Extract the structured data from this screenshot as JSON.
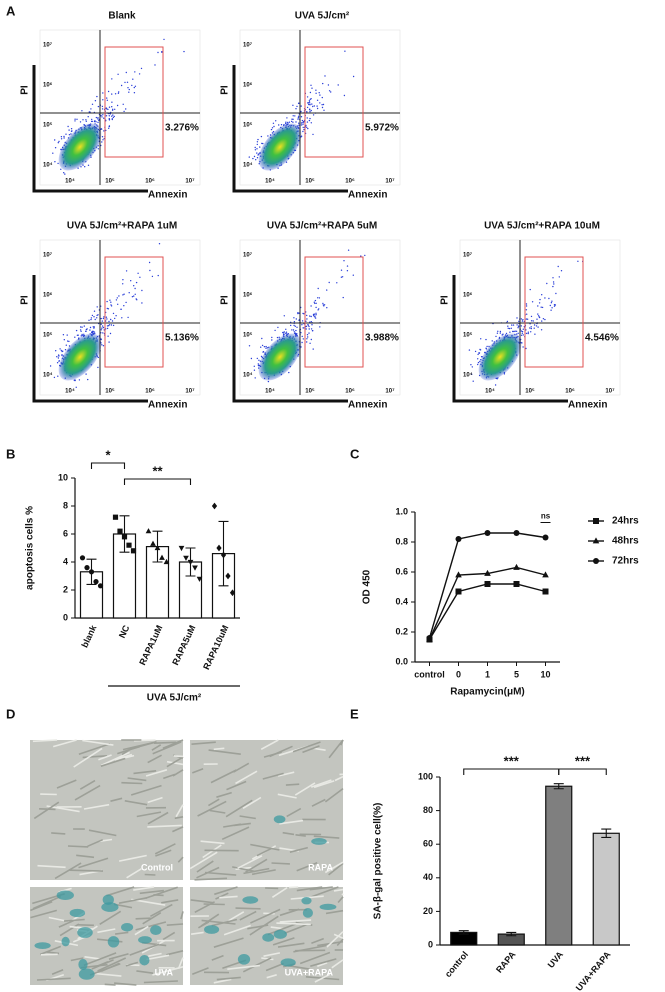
{
  "panel_a": {
    "label": "A",
    "ticks": [
      "10⁴",
      "10⁵",
      "10⁶",
      "10⁷"
    ],
    "plots": [
      {
        "title": "Blank",
        "percent": "3.276%",
        "y_label": "PI",
        "x_label": "Annexin"
      },
      {
        "title": "UVA 5J/cm²",
        "percent": "5.972%",
        "y_label": "PI",
        "x_label": "Annexin"
      },
      {
        "title": "UVA 5J/cm²+RAPA 1uM",
        "percent": "5.136%",
        "y_label": "PI",
        "x_label": "Annexin"
      },
      {
        "title": "UVA 5J/cm²+RAPA 5uM",
        "percent": "3.988%",
        "y_label": "PI",
        "x_label": "Annexin"
      },
      {
        "title": "UVA 5J/cm²+RAPA 10uM",
        "percent": "4.546%",
        "y_label": "PI",
        "x_label": "Annexin"
      }
    ]
  },
  "panel_d": {
    "label": "D",
    "images": [
      "Control",
      "RAPA",
      "UVA",
      "UVA+RAPA"
    ]
  },
  "chart_data": [
    {
      "type": "bar",
      "panel_label": "B",
      "y_label": "apoptosis cells %",
      "categories": [
        "blank",
        "NC",
        "RAPA1uM",
        "RAPA5uM",
        "RAPA10uM"
      ],
      "values": [
        3.3,
        6.0,
        5.1,
        4.0,
        4.6
      ],
      "errors": [
        0.9,
        1.3,
        1.1,
        1.0,
        2.3
      ],
      "points": [
        [
          4.3,
          3.6,
          3.3,
          2.6,
          2.3
        ],
        [
          7.2,
          6.2,
          5.8,
          5.2,
          4.8
        ],
        [
          6.2,
          5.3,
          5.0,
          4.3,
          4.0
        ],
        [
          5.0,
          4.3,
          4.0,
          3.6,
          2.8
        ],
        [
          8.0,
          5.0,
          4.5,
          3.0,
          1.8
        ]
      ],
      "markers": [
        "circle",
        "square",
        "triangle",
        "triangle-down",
        "diamond"
      ],
      "colors": [
        "#ffffff",
        "#ffffff",
        "#ffffff",
        "#ffffff",
        "#ffffff"
      ],
      "group": {
        "label": "UVA 5J/cm²",
        "from": 1,
        "to": 4
      },
      "annotations": [
        {
          "text": "*",
          "from": 0,
          "to": 1
        },
        {
          "text": "**",
          "from": 1,
          "to": 3
        }
      ],
      "ylim": [
        0,
        10
      ],
      "yticks": [
        0,
        2,
        4,
        6,
        8,
        10
      ]
    },
    {
      "type": "line",
      "panel_label": "C",
      "y_label": "OD 450",
      "x_label": "Rapamycin(μM)",
      "categories": [
        "control",
        "0",
        "1",
        "5",
        "10"
      ],
      "series": [
        {
          "name": "24hrs",
          "color": "#111111",
          "marker": "square",
          "values": [
            0.15,
            0.47,
            0.52,
            0.52,
            0.47
          ]
        },
        {
          "name": "48hrs",
          "color": "#111111",
          "marker": "triangle",
          "values": [
            0.15,
            0.58,
            0.59,
            0.63,
            0.58
          ]
        },
        {
          "name": "72hrs",
          "color": "#111111",
          "marker": "circle",
          "values": [
            0.16,
            0.82,
            0.86,
            0.86,
            0.83
          ]
        }
      ],
      "annotations": [
        {
          "text": "ns",
          "series": 2,
          "category": 4
        }
      ],
      "legend": "right",
      "ylim": [
        0,
        1
      ],
      "yticks": [
        {
          "value": 0,
          "label": "0.0"
        },
        0.2,
        0.4,
        0.6,
        0.8,
        {
          "value": 1,
          "label": "1.0"
        }
      ]
    },
    {
      "type": "bar",
      "panel_label": "E",
      "y_label": "SA-β-gal positive cell(%)",
      "categories": [
        "control",
        "RAPA",
        "UVA",
        "UVA+RAPA"
      ],
      "values": [
        7.5,
        6.5,
        94.5,
        66.5
      ],
      "errors": [
        1.0,
        1.0,
        1.5,
        2.5
      ],
      "colors": [
        "#000000",
        "#555555",
        "#7f7f7f",
        "#c8c8c8"
      ],
      "annotations": [
        {
          "text": "***",
          "from": 0,
          "to": 2
        },
        {
          "text": "***",
          "from": 2,
          "to": 3
        }
      ],
      "ylim": [
        0,
        100
      ],
      "yticks": [
        0,
        20,
        40,
        60,
        80,
        100
      ]
    }
  ]
}
